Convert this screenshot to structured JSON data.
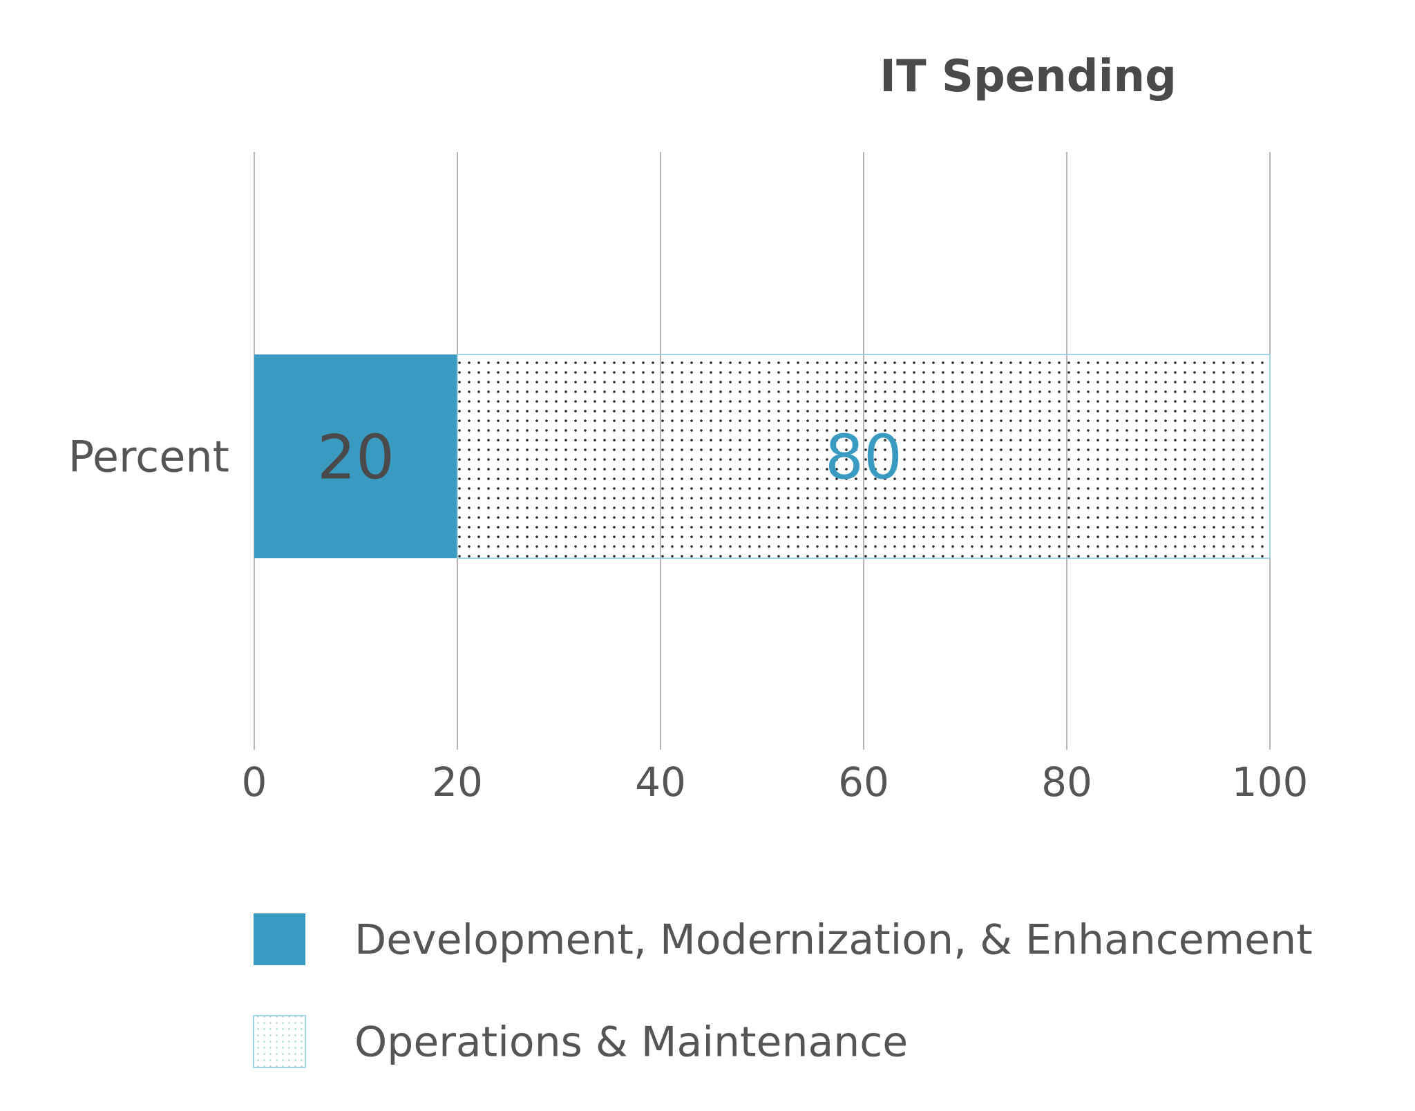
{
  "chart_data": {
    "type": "bar",
    "orientation": "horizontal",
    "stacked": true,
    "title": "IT Spending",
    "categories": [
      "Percent"
    ],
    "series": [
      {
        "name": "Development, Modernization, & Enhancement",
        "values": [
          20
        ],
        "color": "#3a9bc2",
        "fill": "solid",
        "label_color": "#4a4a4a"
      },
      {
        "name": "Operations & Maintenance",
        "values": [
          80
        ],
        "color": "#9fd3e3",
        "fill": "dotted",
        "label_color": "#3a9bc2"
      }
    ],
    "xlim": [
      0,
      100
    ],
    "xticks": [
      0,
      20,
      40,
      60,
      80,
      100
    ],
    "grid": true,
    "legend_position": "bottom"
  }
}
